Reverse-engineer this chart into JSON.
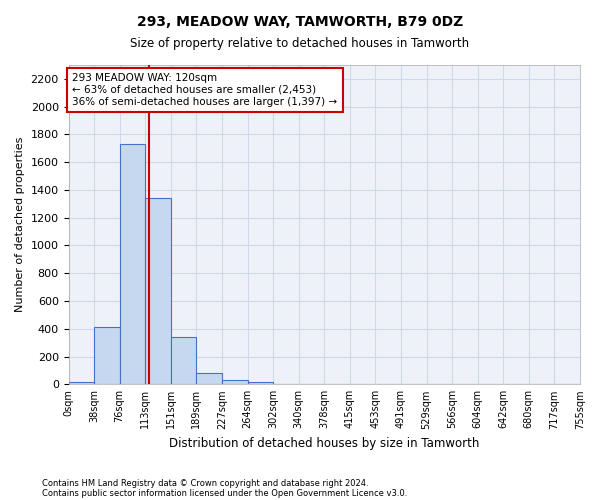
{
  "title1": "293, MEADOW WAY, TAMWORTH, B79 0DZ",
  "title2": "Size of property relative to detached houses in Tamworth",
  "xlabel": "Distribution of detached houses by size in Tamworth",
  "ylabel": "Number of detached properties",
  "footnote1": "Contains HM Land Registry data © Crown copyright and database right 2024.",
  "footnote2": "Contains public sector information licensed under the Open Government Licence v3.0.",
  "bin_labels": [
    "0sqm",
    "38sqm",
    "76sqm",
    "113sqm",
    "151sqm",
    "189sqm",
    "227sqm",
    "264sqm",
    "302sqm",
    "340sqm",
    "378sqm",
    "415sqm",
    "453sqm",
    "491sqm",
    "529sqm",
    "566sqm",
    "604sqm",
    "642sqm",
    "680sqm",
    "717sqm",
    "755sqm"
  ],
  "bar_values": [
    15,
    410,
    1730,
    1340,
    340,
    80,
    28,
    18,
    0,
    0,
    0,
    0,
    0,
    0,
    0,
    0,
    0,
    0,
    0,
    0
  ],
  "bar_color": "#c5d8f0",
  "bar_edge_color": "#4472c4",
  "grid_color": "#d0d8e8",
  "background_color": "#eef2f8",
  "vline_x": 3.16,
  "vline_color": "#cc0000",
  "annotation_text": "293 MEADOW WAY: 120sqm\n← 63% of detached houses are smaller (2,453)\n36% of semi-detached houses are larger (1,397) →",
  "annotation_box_color": "#ffffff",
  "annotation_box_edge": "#cc0000",
  "ylim": [
    0,
    2300
  ],
  "yticks": [
    0,
    200,
    400,
    600,
    800,
    1000,
    1200,
    1400,
    1600,
    1800,
    2000,
    2200
  ]
}
